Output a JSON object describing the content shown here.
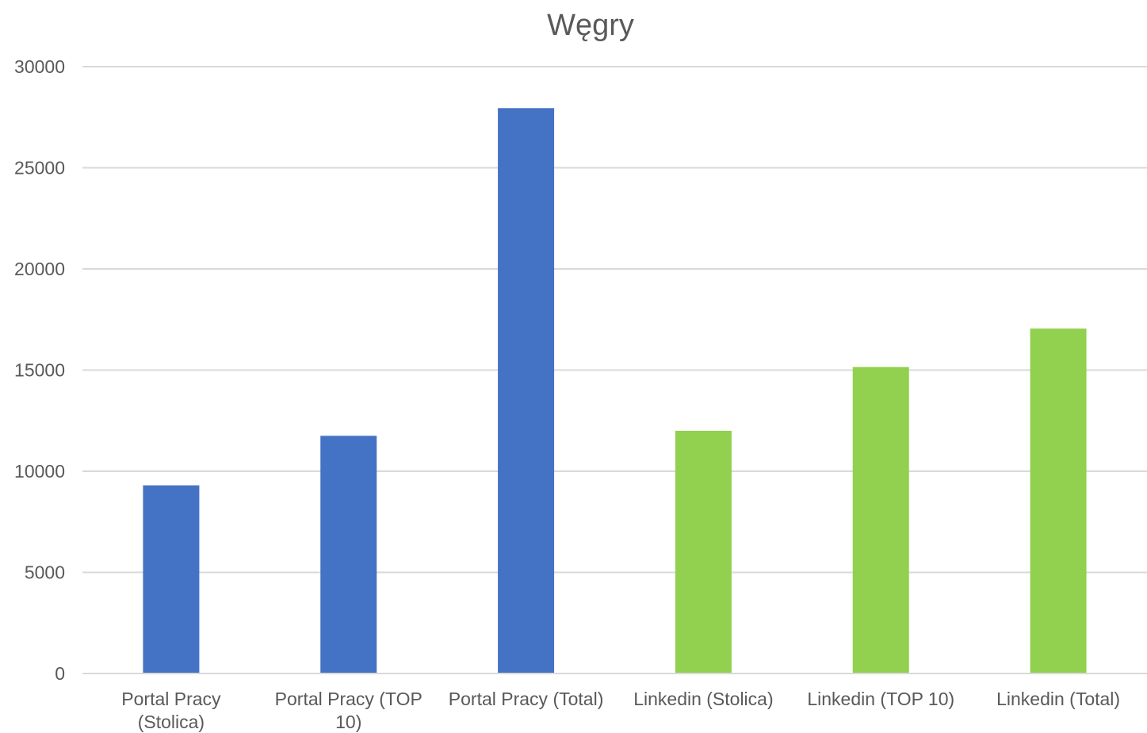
{
  "chart_data": {
    "type": "bar",
    "title": "Węgry",
    "xlabel": "",
    "ylabel": "",
    "ylim": [
      0,
      30000
    ],
    "y_ticks": [
      "0",
      "5000",
      "10000",
      "15000",
      "20000",
      "25000",
      "30000"
    ],
    "grid": true,
    "legend": "none",
    "categories": [
      [
        "Portal Pracy",
        "(Stolica)"
      ],
      [
        "Portal Pracy (TOP",
        "10)"
      ],
      [
        "Portal Pracy (Total)"
      ],
      [
        "Linkedin (Stolica)"
      ],
      [
        "Linkedin (TOP 10)"
      ],
      [
        "Linkedin (Total)"
      ]
    ],
    "values": [
      9300,
      11750,
      27950,
      12000,
      15150,
      17050
    ],
    "bar_colors": [
      "#4472c4",
      "#4472c4",
      "#4472c4",
      "#92d050",
      "#92d050",
      "#92d050"
    ]
  }
}
